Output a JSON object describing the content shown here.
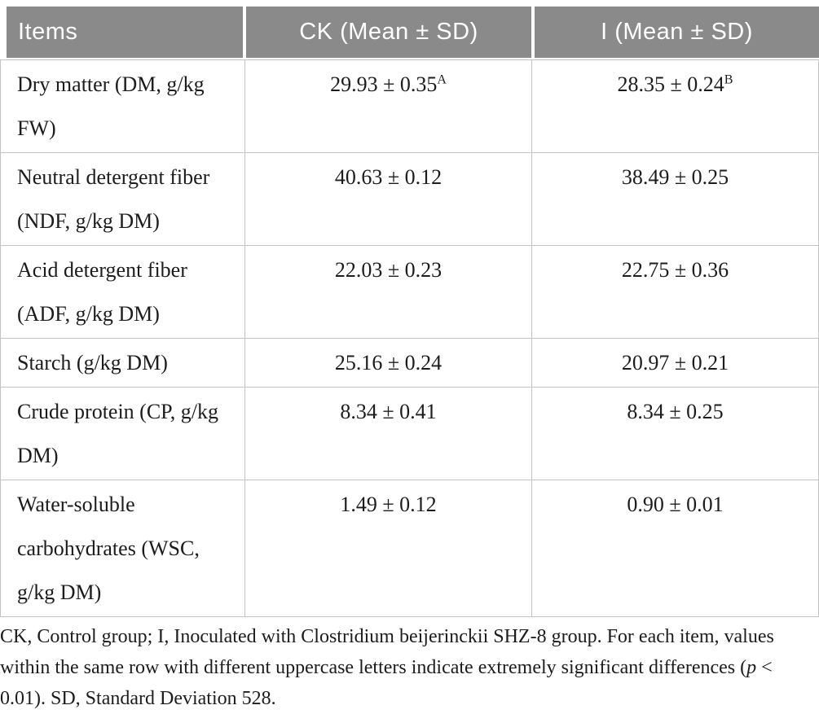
{
  "table": {
    "headers": [
      "Items",
      "CK (Mean ± SD)",
      "I (Mean ± SD)"
    ],
    "rows": [
      {
        "item": "Dry matter (DM, g/kg FW)",
        "ck": "29.93 ± 0.35",
        "ck_sup": "A",
        "i": "28.35 ± 0.24",
        "i_sup": "B"
      },
      {
        "item": "Neutral detergent fiber (NDF, g/kg DM)",
        "ck": "40.63 ± 0.12",
        "ck_sup": "",
        "i": "38.49 ± 0.25",
        "i_sup": ""
      },
      {
        "item": "Acid detergent fiber (ADF, g/kg DM)",
        "ck": "22.03 ± 0.23",
        "ck_sup": "",
        "i": "22.75 ± 0.36",
        "i_sup": ""
      },
      {
        "item": "Starch (g/kg DM)",
        "ck": "25.16 ± 0.24",
        "ck_sup": "",
        "i": "20.97 ± 0.21",
        "i_sup": ""
      },
      {
        "item": "Crude protein (CP, g/kg DM)",
        "ck": "8.34 ± 0.41",
        "ck_sup": "",
        "i": "8.34 ± 0.25",
        "i_sup": ""
      },
      {
        "item": "Water-soluble carbohydrates (WSC, g/kg DM)",
        "ck": "1.49 ± 0.12",
        "ck_sup": "",
        "i": "0.90 ± 0.01",
        "i_sup": ""
      }
    ]
  },
  "footnote": {
    "part1": "CK, Control group; I, Inoculated with Clostridium beijerinckii SHZ-8 group. For each item, values within the same row with different uppercase letters indicate extremely significant differences (",
    "italic_p": "p",
    "part2": " < 0.01). SD, Standard Deviation 528."
  },
  "colors": {
    "header_bg": "#8a8a8a",
    "header_text": "#ffffff",
    "body_text": "#1c1c1c",
    "border": "#c3c3c3",
    "background": "#ffffff"
  }
}
